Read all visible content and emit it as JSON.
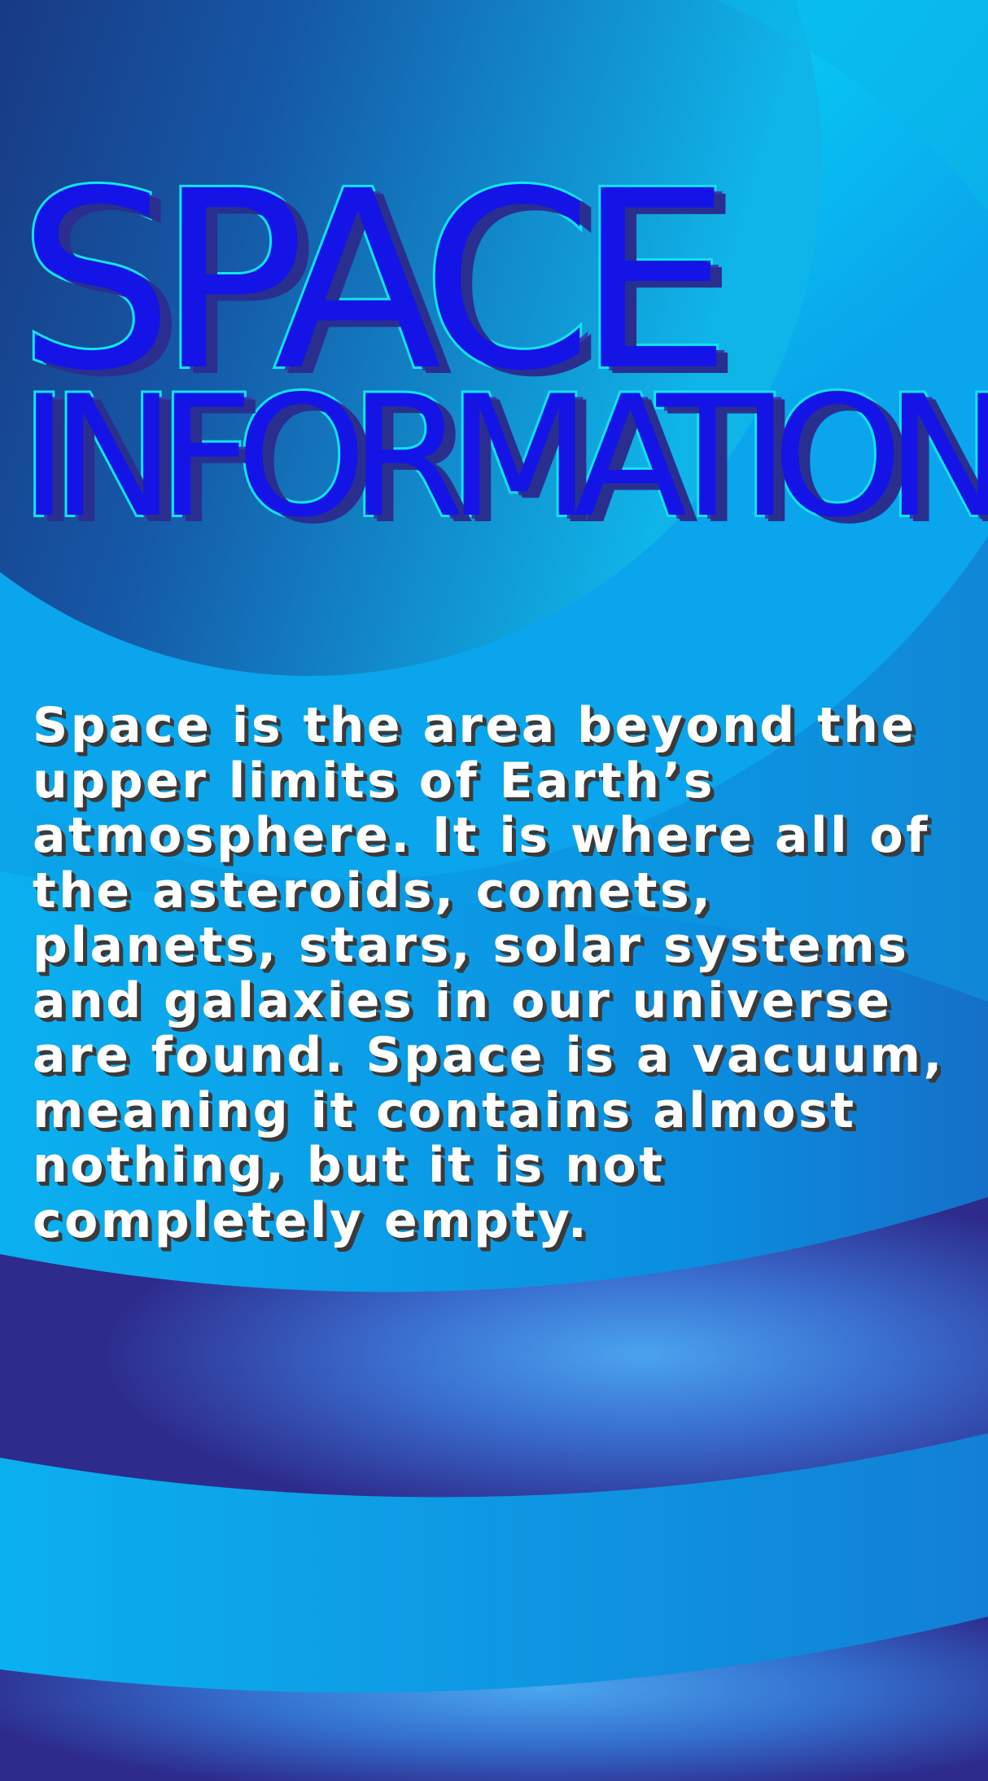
{
  "poster": {
    "title_line_1": "SPACE",
    "title_line_2": "INFORMATION",
    "body": "Space is the area beyond the\nupper limits of Earth’s\natmosphere. It is where all of\nthe asteroids, comets,\nplanets, stars, solar systems\nand galaxies in our universe\nare found. Space is a vacuum,\nmeaning it contains almost\nnothing, but it is not\ncompletely empty."
  },
  "colors": {
    "dark_navy": "#1c1a5e",
    "deep_blue": "#1254a6",
    "cyan": "#00e8fa",
    "sky_blue": "#0aaef0",
    "indigo": "#2e2a8c",
    "title_fill": "#1414e6",
    "title_outline": "#10e4f5",
    "body_text": "#ffffff",
    "body_shadow": "#3a3a3a"
  }
}
